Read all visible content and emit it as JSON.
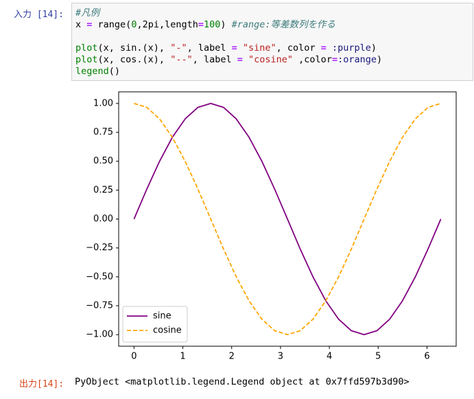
{
  "input_prompt": "入力 [14]:",
  "code": [
    "#凡例",
    "x = range(0,2pi,length=100) #range:等差数列を作る",
    "plot(x, sin.(x), \"-\", label = \"sine\", color = :purple)",
    "plot(x, cos.(x), \"--\", label = \"cosine\" ,color=:orange)",
    "legend()"
  ],
  "output_prompt": "出力[14]:",
  "output": "PyObject <matplotlib.legend.Legend object at 0x7ffd597b3d90>",
  "chart_data": {
    "type": "line",
    "x": [
      0,
      0.262,
      0.524,
      0.785,
      1.047,
      1.309,
      1.571,
      1.833,
      2.094,
      2.356,
      2.618,
      2.88,
      3.142,
      3.403,
      3.665,
      3.927,
      4.189,
      4.451,
      4.712,
      4.974,
      5.236,
      5.498,
      5.76,
      6.021,
      6.283
    ],
    "series": [
      {
        "name": "sine",
        "color": "#800080",
        "linestyle": "solid",
        "values": [
          0,
          0.259,
          0.5,
          0.707,
          0.866,
          0.966,
          1,
          0.966,
          0.866,
          0.707,
          0.5,
          0.259,
          0,
          -0.259,
          -0.5,
          -0.707,
          -0.866,
          -0.966,
          -1,
          -0.966,
          -0.866,
          -0.707,
          -0.5,
          -0.259,
          0
        ]
      },
      {
        "name": "cosine",
        "color": "#ffa500",
        "linestyle": "dashed",
        "values": [
          1,
          0.966,
          0.866,
          0.707,
          0.5,
          0.259,
          0,
          -0.259,
          -0.5,
          -0.707,
          -0.866,
          -0.966,
          -1,
          -0.966,
          -0.866,
          -0.707,
          -0.5,
          -0.259,
          0,
          0.259,
          0.5,
          0.707,
          0.866,
          0.966,
          1
        ]
      }
    ],
    "xlim": [
      -0.314,
      6.597
    ],
    "ylim": [
      -1.1,
      1.1
    ],
    "xticks": [
      0,
      1,
      2,
      3,
      4,
      5,
      6
    ],
    "yticks": [
      {
        "value": -1,
        "label": "−1.00"
      },
      {
        "value": -0.75,
        "label": "−0.75"
      },
      {
        "value": -0.5,
        "label": "−0.50"
      },
      {
        "value": -0.25,
        "label": "−0.25"
      },
      {
        "value": 0,
        "label": "0.00"
      },
      0.25,
      {
        "value": 0.5,
        "label": "0.50"
      },
      0.75,
      {
        "value": 1,
        "label": "1.00"
      }
    ],
    "legend": "lower left"
  }
}
